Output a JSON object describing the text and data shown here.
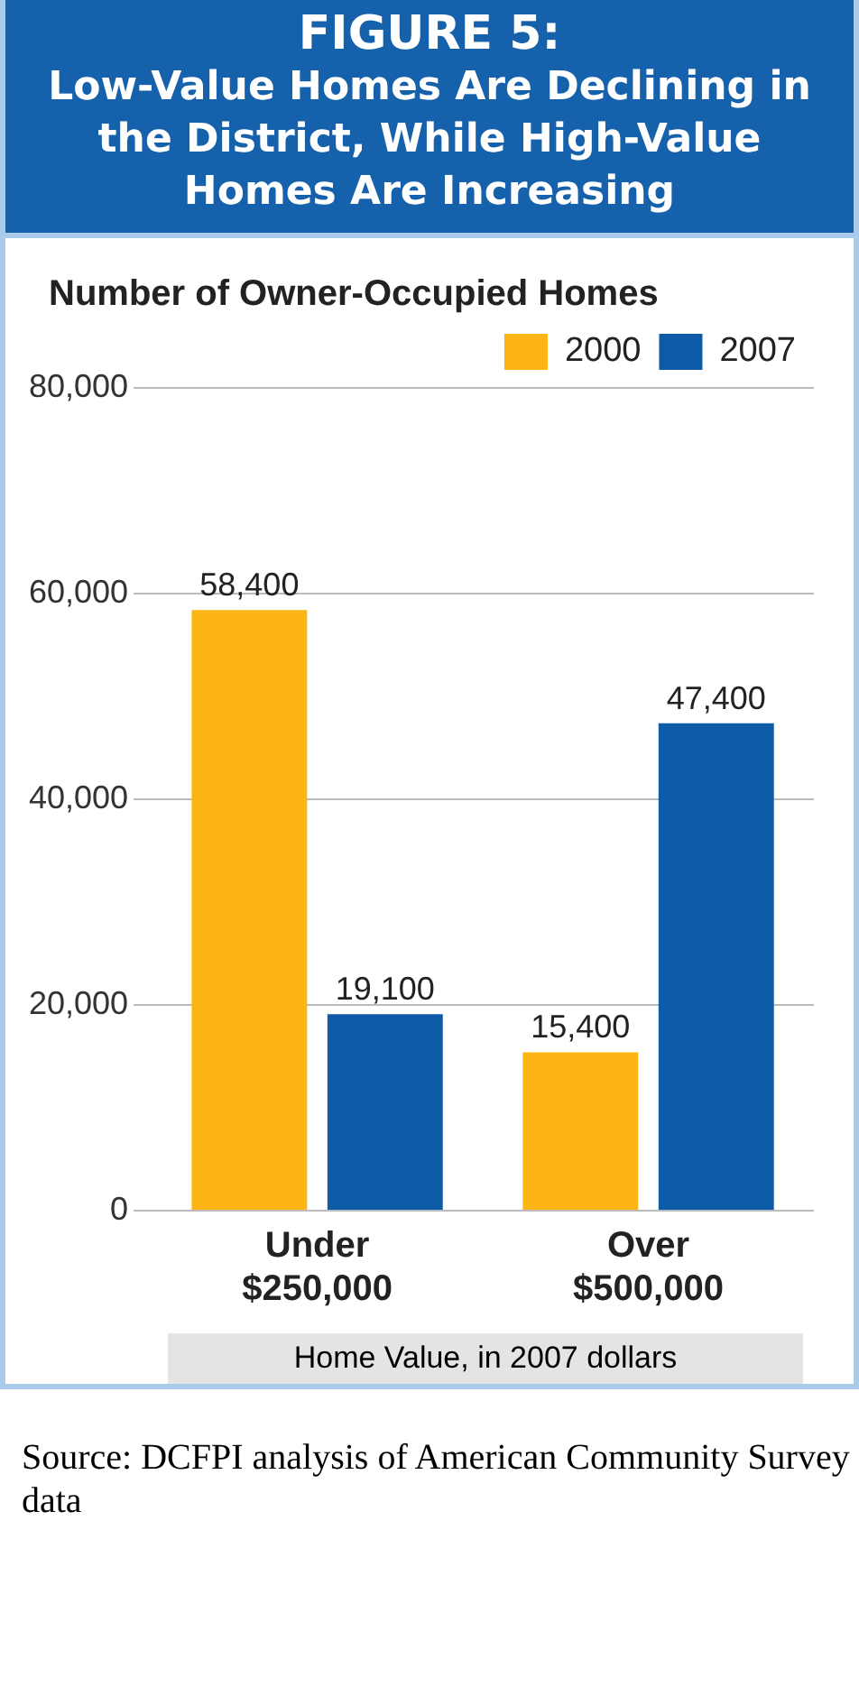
{
  "chart_data": {
    "type": "bar",
    "title": "FIGURE 5:",
    "subtitle": "Low-Value Homes Are Declining in the District, While High-Value Homes Are Increasing",
    "ylabel": "Number of Owner-Occupied Homes",
    "xlabel": "Home Value, in 2007 dollars",
    "categories": [
      "Under $250,000",
      "Over $500,000"
    ],
    "series": [
      {
        "name": "2000",
        "color": "#fdb515",
        "values": [
          58400,
          15400
        ],
        "value_labels": [
          "58,400",
          "15,400"
        ]
      },
      {
        "name": "2007",
        "color": "#0d5aa7",
        "values": [
          19100,
          47400
        ],
        "value_labels": [
          "19,100",
          "47,400"
        ]
      }
    ],
    "ylim": [
      0,
      80000
    ],
    "yticks": [
      {
        "value": 0,
        "label": "0"
      },
      {
        "value": 20000,
        "label": "20,000"
      },
      {
        "value": 40000,
        "label": "40,000"
      },
      {
        "value": 60000,
        "label": "60,000"
      },
      {
        "value": 80000,
        "label": "80,000"
      }
    ],
    "grid": "y",
    "legend": "top right",
    "annotations": [
      "Source: DCFPI analysis of American Community Survey data"
    ]
  }
}
